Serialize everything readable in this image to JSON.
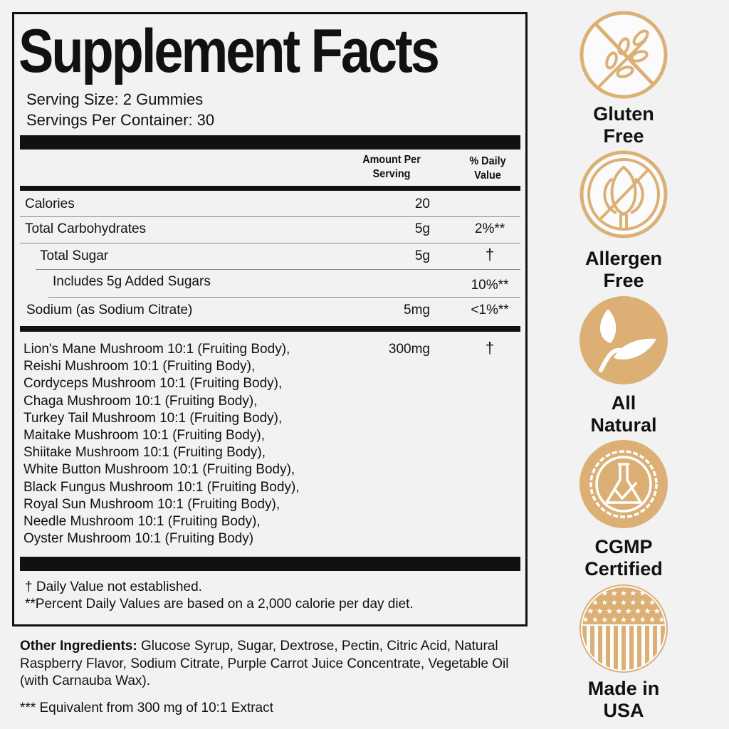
{
  "label": {
    "title": "Supplement Facts",
    "serving_size": "Serving Size: 2 Gummies",
    "servings_per_container": "Servings Per Container: 30",
    "header": {
      "amount": "Amount Per Serving",
      "daily_value": "% Daily Value"
    },
    "rows": [
      {
        "name": "Calories",
        "amount": "20",
        "dv": ""
      },
      {
        "name": "Total Carbohydrates",
        "amount": "5g",
        "dv": "2%**"
      },
      {
        "name": "Total Sugar",
        "amount": "5g",
        "dv": "†"
      },
      {
        "name": "Includes 5g Added Sugars",
        "amount": "",
        "dv": "10%**"
      },
      {
        "name": "Sodium (as Sodium Citrate)",
        "amount": "5mg",
        "dv": "<1%**"
      }
    ],
    "blend": {
      "amount": "300mg",
      "dv": "†",
      "ingredients": [
        "Lion's Mane Mushroom 10:1 (Fruiting Body),",
        "Reishi Mushroom 10:1 (Fruiting Body),",
        "Cordyceps Mushroom 10:1 (Fruiting Body),",
        "Chaga Mushroom 10:1 (Fruiting Body),",
        "Turkey Tail Mushroom 10:1 (Fruiting Body),",
        "Maitake Mushroom 10:1 (Fruiting Body),",
        "Shiitake Mushroom 10:1 (Fruiting Body),",
        "White Button Mushroom 10:1 (Fruiting Body),",
        "Black Fungus Mushroom 10:1 (Fruiting Body),",
        "Royal Sun Mushroom 10:1 (Fruiting Body),",
        "Needle Mushroom 10:1 (Fruiting Body),",
        "Oyster Mushroom 10:1 (Fruiting Body)"
      ]
    },
    "footnotes": [
      "† Daily Value not established.",
      "**Percent Daily Values are based on a 2,000 calorie per day diet."
    ]
  },
  "other_ingredients": {
    "label": "Other Ingredients:",
    "text": " Glucose Syrup, Sugar, Dextrose, Pectin, Citric Acid, Natural Raspberry Flavor, Sodium Citrate, Purple Carrot Juice Concentrate, Vegetable Oil (with Carnauba Wax)."
  },
  "extract_note": "*** Equivalent from 300 mg of 10:1 Extract",
  "badges": [
    {
      "icon": "gluten-free-icon",
      "line1": "Gluten",
      "line2": "Free"
    },
    {
      "icon": "allergen-free-icon",
      "line1": "Allergen",
      "line2": "Free"
    },
    {
      "icon": "leaf-icon",
      "line1": "All",
      "line2": "Natural"
    },
    {
      "icon": "flask-seal-icon",
      "line1": "CGMP",
      "line2": "Certified"
    },
    {
      "icon": "usa-flag-icon",
      "line1": "Made in",
      "line2": "USA"
    }
  ],
  "colors": {
    "gold": "#dcb075",
    "text": "#111111",
    "background": "#f2f2f2"
  }
}
